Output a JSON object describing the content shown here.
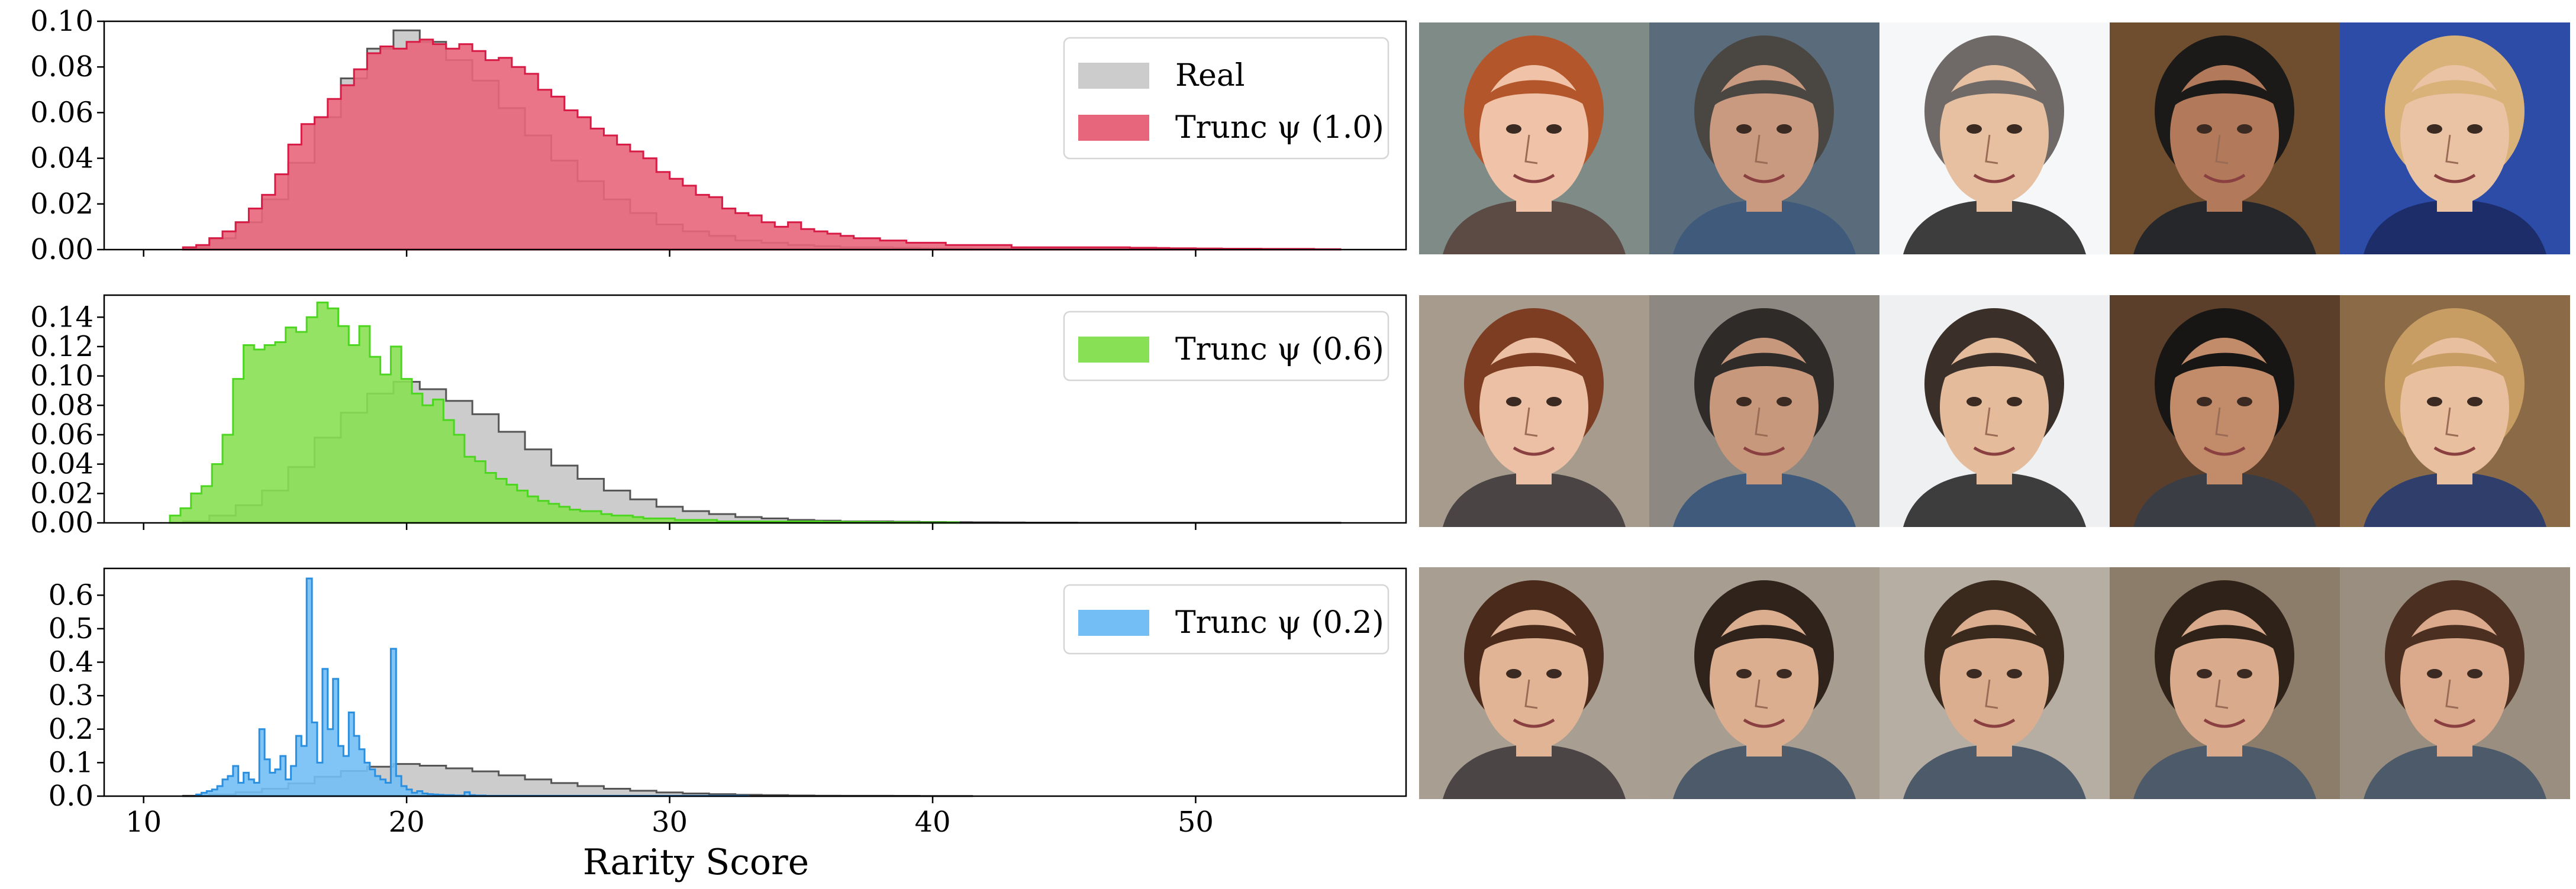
{
  "chart_data": [
    {
      "type": "area",
      "xlabel": "",
      "ylim": [
        0,
        0.1
      ],
      "xlim": [
        8.5,
        58
      ],
      "yticks": [
        "0.00",
        "0.02",
        "0.04",
        "0.06",
        "0.08",
        "0.10"
      ],
      "ytick_values": [
        0,
        0.02,
        0.04,
        0.06,
        0.08,
        0.1
      ],
      "legend_position": "upper right",
      "series": [
        {
          "name": "Real",
          "color": "#cccccc",
          "edge": "#555555",
          "x_start": 11.5,
          "bin_width": 1.0,
          "values": [
            0.001,
            0.005,
            0.012,
            0.022,
            0.038,
            0.058,
            0.075,
            0.088,
            0.096,
            0.091,
            0.083,
            0.074,
            0.062,
            0.05,
            0.039,
            0.03,
            0.022,
            0.016,
            0.011,
            0.008,
            0.006,
            0.004,
            0.003,
            0.002,
            0.0015,
            0.001,
            0.001,
            0.0008,
            0.0006,
            0.0005,
            0.0004,
            0.0003,
            0.0002,
            0.0002,
            0.0001,
            0.0001,
            0.0001,
            0.0001,
            0.0001,
            0.0001,
            0.0001,
            0.0001,
            0.0001,
            0.0001
          ]
        },
        {
          "name": "Trunc ψ (1.0)",
          "color": "#e8667c",
          "edge": "#d81b45",
          "x_start": 11.5,
          "bin_width": 0.5,
          "values": [
            0.001,
            0.002,
            0.005,
            0.008,
            0.012,
            0.018,
            0.024,
            0.033,
            0.046,
            0.055,
            0.058,
            0.066,
            0.072,
            0.079,
            0.086,
            0.089,
            0.088,
            0.091,
            0.092,
            0.09,
            0.088,
            0.09,
            0.087,
            0.083,
            0.084,
            0.08,
            0.077,
            0.07,
            0.067,
            0.061,
            0.058,
            0.053,
            0.05,
            0.046,
            0.043,
            0.04,
            0.034,
            0.031,
            0.028,
            0.024,
            0.023,
            0.018,
            0.016,
            0.015,
            0.012,
            0.01,
            0.012,
            0.009,
            0.008,
            0.007,
            0.006,
            0.005,
            0.005,
            0.004,
            0.004,
            0.003,
            0.003,
            0.003,
            0.002,
            0.002,
            0.002,
            0.002,
            0.002,
            0.001,
            0.001,
            0.001,
            0.001,
            0.001,
            0.001,
            0.001,
            0.001,
            0.001,
            0.0008,
            0.0008,
            0.0007,
            0.0006,
            0.0006,
            0.0005,
            0.0005,
            0.0004,
            0.0004,
            0.0004,
            0.0003,
            0.0003,
            0.0003,
            0.0003,
            0.0002,
            0.0002
          ]
        }
      ]
    },
    {
      "type": "area",
      "xlabel": "",
      "ylim": [
        0,
        0.155
      ],
      "xlim": [
        8.5,
        58
      ],
      "yticks": [
        "0.00",
        "0.02",
        "0.04",
        "0.06",
        "0.08",
        "0.10",
        "0.12",
        "0.14"
      ],
      "ytick_values": [
        0,
        0.02,
        0.04,
        0.06,
        0.08,
        0.1,
        0.12,
        0.14
      ],
      "legend_position": "upper right",
      "series": [
        {
          "name": "Real",
          "color": "#cccccc",
          "edge": "#555555",
          "x_start": 11.5,
          "bin_width": 1.0,
          "values": [
            0.001,
            0.005,
            0.012,
            0.022,
            0.038,
            0.058,
            0.075,
            0.088,
            0.096,
            0.091,
            0.083,
            0.074,
            0.062,
            0.05,
            0.039,
            0.03,
            0.022,
            0.016,
            0.011,
            0.008,
            0.006,
            0.004,
            0.003,
            0.002,
            0.0015,
            0.001,
            0.001,
            0.0008,
            0.0006,
            0.0005,
            0.0004,
            0.0003,
            0.0002,
            0.0002,
            0.0001,
            0.0001,
            0.0001,
            0.0001,
            0.0001,
            0.0001,
            0.0001,
            0.0001,
            0.0001,
            0.0001
          ]
        },
        {
          "name": "Trunc ψ (0.6)",
          "color": "#88e054",
          "edge": "#4cd61f",
          "x_start": 11.0,
          "bin_width": 0.4,
          "values": [
            0.005,
            0.01,
            0.02,
            0.025,
            0.04,
            0.06,
            0.098,
            0.121,
            0.118,
            0.121,
            0.123,
            0.133,
            0.13,
            0.14,
            0.15,
            0.146,
            0.134,
            0.121,
            0.134,
            0.113,
            0.101,
            0.12,
            0.098,
            0.088,
            0.08,
            0.084,
            0.07,
            0.06,
            0.045,
            0.042,
            0.034,
            0.03,
            0.026,
            0.022,
            0.018,
            0.015,
            0.013,
            0.011,
            0.009,
            0.008,
            0.008,
            0.006,
            0.005,
            0.005,
            0.004,
            0.003,
            0.003,
            0.003,
            0.002,
            0.002,
            0.002,
            0.002,
            0.001,
            0.001,
            0.001,
            0.001,
            0.001,
            0.001,
            0.001,
            0.001,
            0.001,
            0.001,
            0.0008,
            0.0008,
            0.0007,
            0.0007,
            0.0006,
            0.0006,
            0.0005,
            0.0005,
            0.0005,
            0.0004,
            0.0004,
            0.0004,
            0.0004
          ]
        }
      ]
    },
    {
      "type": "area",
      "xlabel": "Rarity Score",
      "ylim": [
        0,
        0.68
      ],
      "xlim": [
        8.5,
        58
      ],
      "yticks": [
        "0.0",
        "0.1",
        "0.2",
        "0.3",
        "0.4",
        "0.5",
        "0.6"
      ],
      "ytick_values": [
        0,
        0.1,
        0.2,
        0.3,
        0.4,
        0.5,
        0.6
      ],
      "xticks": [
        "10",
        "20",
        "30",
        "40",
        "50"
      ],
      "xtick_values": [
        10,
        20,
        30,
        40,
        50
      ],
      "legend_position": "upper right",
      "series": [
        {
          "name": "Real",
          "color": "#cccccc",
          "edge": "#555555",
          "x_start": 11.5,
          "bin_width": 1.0,
          "values": [
            0.001,
            0.005,
            0.012,
            0.022,
            0.038,
            0.058,
            0.075,
            0.088,
            0.096,
            0.091,
            0.083,
            0.074,
            0.062,
            0.05,
            0.039,
            0.03,
            0.022,
            0.016,
            0.011,
            0.008,
            0.006,
            0.004,
            0.003,
            0.002,
            0.0015,
            0.001,
            0.001,
            0.0008,
            0.0006,
            0.0005
          ]
        },
        {
          "name": "Trunc ψ (0.2)",
          "color": "#73bff5",
          "edge": "#2b8fe0",
          "x_start": 12.0,
          "bin_width": 0.2,
          "values": [
            0.005,
            0.01,
            0.015,
            0.02,
            0.03,
            0.05,
            0.06,
            0.09,
            0.04,
            0.07,
            0.05,
            0.04,
            0.2,
            0.11,
            0.07,
            0.08,
            0.12,
            0.05,
            0.09,
            0.18,
            0.15,
            0.65,
            0.22,
            0.1,
            0.38,
            0.2,
            0.35,
            0.15,
            0.12,
            0.25,
            0.18,
            0.14,
            0.1,
            0.08,
            0.06,
            0.05,
            0.04,
            0.44,
            0.06,
            0.03,
            0.02,
            0.01,
            0.015,
            0.008,
            0.006,
            0.005,
            0.004,
            0.003,
            0.003,
            0.002,
            0.002,
            0.012,
            0.003,
            0.002,
            0.002,
            0.001,
            0.001,
            0.001,
            0.001,
            0.001,
            0.001,
            0.001,
            0.001,
            0.001,
            0.001,
            0.001,
            0.001,
            0.001,
            0.001,
            0.001,
            0.001,
            0.001,
            0.001,
            0.001,
            0.001,
            0.001,
            0.001,
            0.001,
            0.001,
            0.001,
            0.001,
            0.001,
            0.001,
            0.001,
            0.001,
            0.001,
            0.001,
            0.001,
            0.001,
            0.001,
            0.001,
            0.001,
            0.001,
            0.001,
            0.001,
            0.001,
            0.001,
            0.001,
            0.001,
            0.001,
            0.001,
            0.001,
            0.001,
            0.001,
            0.001
          ]
        }
      ]
    }
  ],
  "faces": {
    "rows": [
      {
        "skin": "#e8b49a",
        "hair": "#b5582e",
        "bg": "#8a9189",
        "cells": [
          {
            "skin": "#f0c2a7",
            "hair": "#b4562c",
            "bg": "#7f8b87",
            "shirt": "#5c4b44"
          },
          {
            "skin": "#c99a80",
            "hair": "#4a4642",
            "bg": "#5a6c7b",
            "shirt": "#3f5a7a"
          },
          {
            "skin": "#e6c0a0",
            "hair": "#6f6a67",
            "bg": "#f6f7f8",
            "shirt": "#3d3d3d"
          },
          {
            "skin": "#b27a5a",
            "hair": "#1c1a18",
            "bg": "#6f4e2f",
            "shirt": "#26272a"
          },
          {
            "skin": "#eac2a4",
            "hair": "#d9b27a",
            "bg": "#2c4ca8",
            "shirt": "#1d2d6a"
          }
        ]
      },
      {
        "skin": "#e8b49a",
        "hair": "#7a3b22",
        "bg": "#9b9085",
        "cells": [
          {
            "skin": "#ecc0a4",
            "hair": "#7c3d22",
            "bg": "#a79b8e",
            "shirt": "#4a4444"
          },
          {
            "skin": "#c8987c",
            "hair": "#2e2b29",
            "bg": "#8d8881",
            "shirt": "#3f5a7a"
          },
          {
            "skin": "#e4bc9c",
            "hair": "#3b3029",
            "bg": "#eef0f1",
            "shirt": "#3d3d3d"
          },
          {
            "skin": "#c28c6a",
            "hair": "#171614",
            "bg": "#5b3f2a",
            "shirt": "#3a3d44"
          },
          {
            "skin": "#e8bf9f",
            "hair": "#c79d63",
            "bg": "#8a6a47",
            "shirt": "#2f3e6a"
          }
        ]
      },
      {
        "skin": "#dfb194",
        "hair": "#3e2518",
        "bg": "#a49a8d",
        "cells": [
          {
            "skin": "#e2b496",
            "hair": "#4a2a1a",
            "bg": "#a99e92",
            "shirt": "#4b4545"
          },
          {
            "skin": "#dcae90",
            "hair": "#2f231b",
            "bg": "#a79d91",
            "shirt": "#4d5a6a"
          },
          {
            "skin": "#dcae90",
            "hair": "#3a2a1e",
            "bg": "#b6ada3",
            "shirt": "#4d5a6a"
          },
          {
            "skin": "#d9aa8c",
            "hair": "#2f2219",
            "bg": "#8c7c6a",
            "shirt": "#4d5a6a"
          },
          {
            "skin": "#dba98b",
            "hair": "#4b2f20",
            "bg": "#9a8e80",
            "shirt": "#4d5a6a"
          }
        ]
      }
    ]
  }
}
